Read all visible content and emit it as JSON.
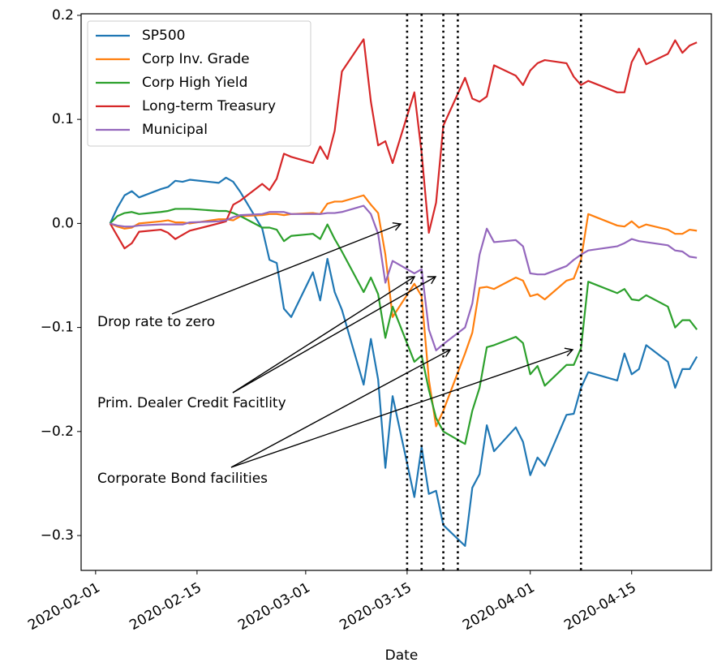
{
  "chart_data": {
    "type": "line",
    "xlabel": "Date",
    "x": [
      "2020-02-03",
      "2020-02-04",
      "2020-02-05",
      "2020-02-06",
      "2020-02-07",
      "2020-02-10",
      "2020-02-11",
      "2020-02-12",
      "2020-02-13",
      "2020-02-14",
      "2020-02-18",
      "2020-02-19",
      "2020-02-20",
      "2020-02-21",
      "2020-02-24",
      "2020-02-25",
      "2020-02-26",
      "2020-02-27",
      "2020-02-28",
      "2020-03-02",
      "2020-03-03",
      "2020-03-04",
      "2020-03-05",
      "2020-03-06",
      "2020-03-09",
      "2020-03-10",
      "2020-03-11",
      "2020-03-12",
      "2020-03-13",
      "2020-03-16",
      "2020-03-17",
      "2020-03-18",
      "2020-03-19",
      "2020-03-20",
      "2020-03-23",
      "2020-03-24",
      "2020-03-25",
      "2020-03-26",
      "2020-03-27",
      "2020-03-30",
      "2020-03-31",
      "2020-04-01",
      "2020-04-02",
      "2020-04-03",
      "2020-04-06",
      "2020-04-07",
      "2020-04-08",
      "2020-04-09",
      "2020-04-13",
      "2020-04-14",
      "2020-04-15",
      "2020-04-16",
      "2020-04-17",
      "2020-04-20",
      "2020-04-21",
      "2020-04-22",
      "2020-04-23",
      "2020-04-24"
    ],
    "series": [
      {
        "name": "SP500",
        "color": "#1f77b4",
        "values": [
          0,
          0.015,
          0.027,
          0.031,
          0.025,
          0.033,
          0.035,
          0.041,
          0.04,
          0.042,
          0.039,
          0.044,
          0.04,
          0.03,
          -0.005,
          -0.035,
          -0.038,
          -0.082,
          -0.09,
          -0.047,
          -0.074,
          -0.034,
          -0.066,
          -0.083,
          -0.155,
          -0.111,
          -0.15,
          -0.235,
          -0.166,
          -0.263,
          -0.215,
          -0.26,
          -0.257,
          -0.29,
          -0.31,
          -0.254,
          -0.241,
          -0.194,
          -0.219,
          -0.196,
          -0.21,
          -0.242,
          -0.225,
          -0.233,
          -0.184,
          -0.183,
          -0.158,
          -0.143,
          -0.151,
          -0.125,
          -0.145,
          -0.14,
          -0.117,
          -0.133,
          -0.158,
          -0.14,
          -0.14,
          -0.128
        ]
      },
      {
        "name": "Corp Inv. Grade",
        "color": "#ff7f0e",
        "values": [
          0,
          -0.003,
          -0.005,
          -0.004,
          0.0,
          0.002,
          0.003,
          0.001,
          0.001,
          0.0,
          0.004,
          0.004,
          0.003,
          0.007,
          0.008,
          0.009,
          0.009,
          0.008,
          0.009,
          0.01,
          0.009,
          0.019,
          0.021,
          0.021,
          0.027,
          0.018,
          0.01,
          -0.03,
          -0.09,
          -0.058,
          -0.07,
          -0.15,
          -0.195,
          -0.18,
          -0.125,
          -0.105,
          -0.062,
          -0.061,
          -0.063,
          -0.052,
          -0.055,
          -0.07,
          -0.068,
          -0.073,
          -0.055,
          -0.053,
          -0.035,
          0.009,
          -0.002,
          -0.003,
          0.002,
          -0.004,
          -0.001,
          -0.006,
          -0.01,
          -0.01,
          -0.006,
          -0.007
        ]
      },
      {
        "name": "Corp High Yield",
        "color": "#2ca02c",
        "values": [
          0,
          0.007,
          0.01,
          0.011,
          0.009,
          0.011,
          0.012,
          0.014,
          0.014,
          0.014,
          0.012,
          0.012,
          0.01,
          0.007,
          -0.004,
          -0.004,
          -0.006,
          -0.017,
          -0.012,
          -0.01,
          -0.015,
          -0.001,
          -0.015,
          -0.027,
          -0.066,
          -0.052,
          -0.068,
          -0.11,
          -0.08,
          -0.133,
          -0.127,
          -0.16,
          -0.187,
          -0.2,
          -0.212,
          -0.18,
          -0.158,
          -0.119,
          -0.117,
          -0.109,
          -0.115,
          -0.145,
          -0.137,
          -0.156,
          -0.136,
          -0.136,
          -0.12,
          -0.056,
          -0.067,
          -0.063,
          -0.073,
          -0.074,
          -0.069,
          -0.08,
          -0.1,
          -0.093,
          -0.093,
          -0.102
        ]
      },
      {
        "name": "Long-term Treasury",
        "color": "#d62728",
        "values": [
          0,
          -0.012,
          -0.024,
          -0.019,
          -0.008,
          -0.006,
          -0.009,
          -0.015,
          -0.011,
          -0.007,
          0.0,
          0.002,
          0.018,
          0.022,
          0.038,
          0.032,
          0.043,
          0.067,
          0.064,
          0.058,
          0.074,
          0.062,
          0.089,
          0.146,
          0.177,
          0.117,
          0.075,
          0.079,
          0.058,
          0.126,
          0.068,
          -0.009,
          0.02,
          0.094,
          0.14,
          0.12,
          0.117,
          0.122,
          0.152,
          0.142,
          0.133,
          0.147,
          0.154,
          0.157,
          0.154,
          0.141,
          0.133,
          0.137,
          0.126,
          0.126,
          0.155,
          0.168,
          0.153,
          0.163,
          0.176,
          0.164,
          0.171,
          0.174
        ]
      },
      {
        "name": "Municipal",
        "color": "#9467bd",
        "values": [
          0,
          -0.002,
          -0.003,
          -0.003,
          -0.002,
          -0.001,
          -0.001,
          -0.001,
          -0.001,
          0.001,
          0.002,
          0.003,
          0.006,
          0.008,
          0.009,
          0.011,
          0.011,
          0.011,
          0.009,
          0.009,
          0.009,
          0.01,
          0.01,
          0.011,
          0.017,
          0.009,
          -0.01,
          -0.057,
          -0.036,
          -0.048,
          -0.044,
          -0.102,
          -0.122,
          -0.116,
          -0.1,
          -0.077,
          -0.03,
          -0.005,
          -0.018,
          -0.016,
          -0.022,
          -0.048,
          -0.049,
          -0.049,
          -0.041,
          -0.035,
          -0.03,
          -0.026,
          -0.022,
          -0.019,
          -0.015,
          -0.017,
          -0.018,
          -0.021,
          -0.026,
          -0.027,
          -0.032,
          -0.033
        ]
      }
    ],
    "vlines": [
      "2020-03-15",
      "2020-03-17",
      "2020-03-20",
      "2020-03-22",
      "2020-04-08"
    ],
    "annotations": [
      "Drop rate to zero",
      "Prim. Dealer Credit Facitlity",
      "Corporate Bond facilities"
    ],
    "xlim": [
      "2020-01-30",
      "2020-04-26"
    ],
    "xticks": [
      "2020-02-01",
      "2020-02-15",
      "2020-03-01",
      "2020-03-15",
      "2020-04-01",
      "2020-04-15"
    ],
    "ylim": [
      -0.3335,
      0.2015
    ],
    "yticks": [
      {
        "value": -0.3,
        "label": "−0.3"
      },
      {
        "value": -0.2,
        "label": "−0.2"
      },
      {
        "value": -0.1,
        "label": "−0.1"
      },
      {
        "value": 0,
        "label": "0.0"
      },
      0.1,
      0.2
    ],
    "legend": "upper left"
  }
}
